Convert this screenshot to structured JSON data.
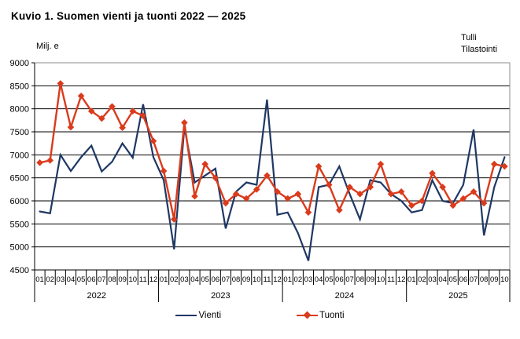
{
  "title": "Kuvio 1. Suomen vienti ja tuonti 2022 — 2025",
  "y_axis_title": "Milj. e",
  "corner_note": {
    "line1": "Tulli",
    "line2": "Tilastointi"
  },
  "legend": {
    "vienti": "Vienti",
    "tuonti": "Tuonti"
  },
  "colors": {
    "vienti": "#1f3864",
    "tuonti": "#da3b1c",
    "grid": "#000000",
    "frame": "#8c8c8c",
    "text": "#000000"
  },
  "chart_data": {
    "type": "line",
    "title": "Kuvio 1. Suomen vienti ja tuonti 2022 — 2025",
    "xlabel": "",
    "ylabel": "Milj. e",
    "ylim": [
      4500,
      9000
    ],
    "ytick_step": 500,
    "grid": true,
    "legend_position": "bottom",
    "years": [
      {
        "label": "2022",
        "months": [
          "01",
          "02",
          "03",
          "04",
          "05",
          "06",
          "07",
          "08",
          "09",
          "10",
          "11",
          "12"
        ]
      },
      {
        "label": "2023",
        "months": [
          "01",
          "02",
          "03",
          "04",
          "05",
          "06",
          "07",
          "08",
          "09",
          "10",
          "11",
          "12"
        ]
      },
      {
        "label": "2024",
        "months": [
          "01",
          "02",
          "03",
          "04",
          "05",
          "06",
          "07",
          "08",
          "09",
          "10",
          "11",
          "12"
        ]
      },
      {
        "label": "2025",
        "months": [
          "01",
          "02",
          "03",
          "04",
          "05",
          "06",
          "07",
          "08",
          "09",
          "10"
        ]
      }
    ],
    "series": [
      {
        "name": "Vienti",
        "color": "#1f3864",
        "marker": "none",
        "values": [
          5770,
          5730,
          7000,
          6650,
          6950,
          7200,
          6640,
          6850,
          7250,
          6940,
          8100,
          6950,
          6450,
          4950,
          7600,
          6400,
          6550,
          6700,
          5400,
          6200,
          6400,
          6350,
          8200,
          5700,
          5750,
          5300,
          4700,
          6300,
          6350,
          6750,
          6150,
          5600,
          6450,
          6400,
          6150,
          6000,
          5750,
          5800,
          6450,
          6000,
          5950,
          6350,
          7550,
          5250,
          6300,
          6950
        ]
      },
      {
        "name": "Tuonti",
        "color": "#da3b1c",
        "marker": "diamond",
        "values": [
          6830,
          6880,
          8550,
          7600,
          8280,
          7950,
          7790,
          8050,
          7590,
          7950,
          7850,
          7300,
          6650,
          5600,
          7700,
          6100,
          6800,
          6500,
          5950,
          6150,
          6050,
          6250,
          6550,
          6200,
          6050,
          6150,
          5750,
          6750,
          6350,
          5800,
          6300,
          6150,
          6300,
          6800,
          6150,
          6200,
          5900,
          6000,
          6600,
          6300,
          5900,
          6050,
          6200,
          5950,
          6800,
          6750
        ]
      }
    ]
  }
}
